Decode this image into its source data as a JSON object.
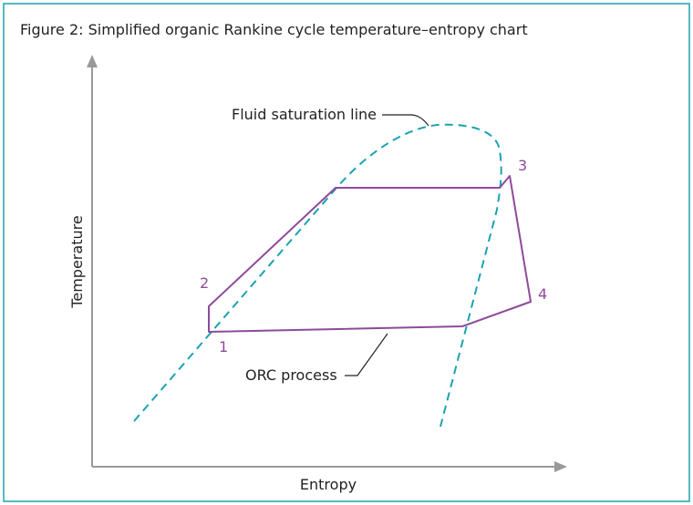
{
  "header": {
    "title": "Figure 2: Simplified organic Rankine cycle temperature–entropy chart"
  },
  "axes": {
    "x_label": "Entropy",
    "y_label": "Temperature"
  },
  "annotations": {
    "saturation": "Fluid saturation line",
    "process": "ORC process"
  },
  "points": [
    "1",
    "2",
    "3",
    "4"
  ]
}
